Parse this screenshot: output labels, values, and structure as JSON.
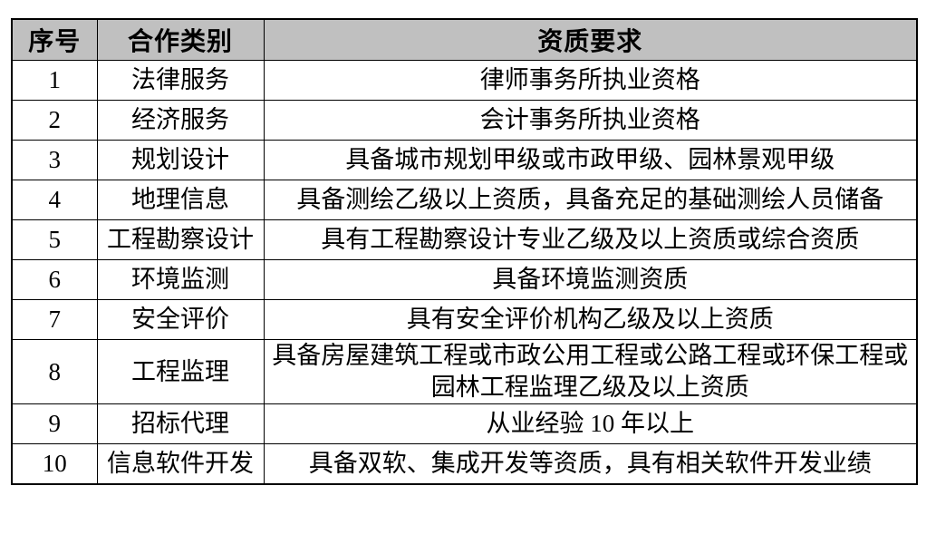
{
  "table": {
    "headers": [
      "序号",
      "合作类别",
      "资质要求"
    ],
    "rows": [
      {
        "no": "1",
        "category": "法律服务",
        "requirement": "律师事务所执业资格"
      },
      {
        "no": "2",
        "category": "经济服务",
        "requirement": "会计事务所执业资格"
      },
      {
        "no": "3",
        "category": "规划设计",
        "requirement": "具备城市规划甲级或市政甲级、园林景观甲级"
      },
      {
        "no": "4",
        "category": "地理信息",
        "requirement": "具备测绘乙级以上资质，具备充足的基础测绘人员储备"
      },
      {
        "no": "5",
        "category": "工程勘察设计",
        "requirement": "具有工程勘察设计专业乙级及以上资质或综合资质"
      },
      {
        "no": "6",
        "category": "环境监测",
        "requirement": "具备环境监测资质"
      },
      {
        "no": "7",
        "category": "安全评价",
        "requirement": "具有安全评价机构乙级及以上资质"
      },
      {
        "no": "8",
        "category": "工程监理",
        "requirement": "具备房屋建筑工程或市政公用工程或公路工程或环保工程或园林工程监理乙级及以上资质"
      },
      {
        "no": "9",
        "category": "招标代理",
        "requirement": "从业经验 10 年以上"
      },
      {
        "no": "10",
        "category": "信息软件开发",
        "requirement": "具备双软、集成开发等资质，具有相关软件开发业绩"
      }
    ],
    "colors": {
      "header_background": "#c0c0c0",
      "border": "#000000",
      "text": "#000000"
    }
  }
}
